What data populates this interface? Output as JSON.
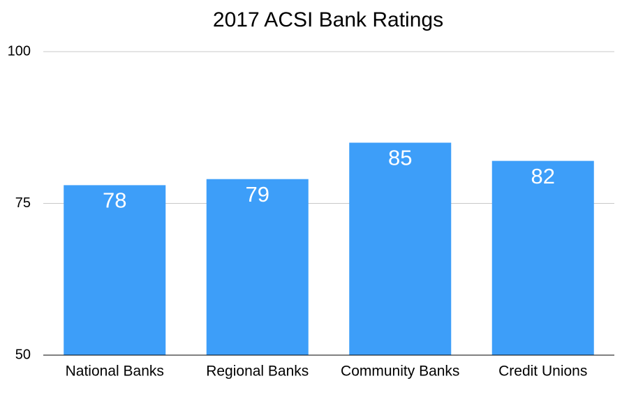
{
  "chart_data": {
    "type": "bar",
    "title": "2017 ACSI Bank Ratings",
    "categories": [
      "National Banks",
      "Regional Banks",
      "Community Banks",
      "Credit Unions"
    ],
    "values": [
      78,
      79,
      85,
      82
    ],
    "color": "#3d9ef9",
    "ylim": [
      50,
      100
    ],
    "yticks": [
      50,
      75,
      100
    ],
    "grid": true
  }
}
